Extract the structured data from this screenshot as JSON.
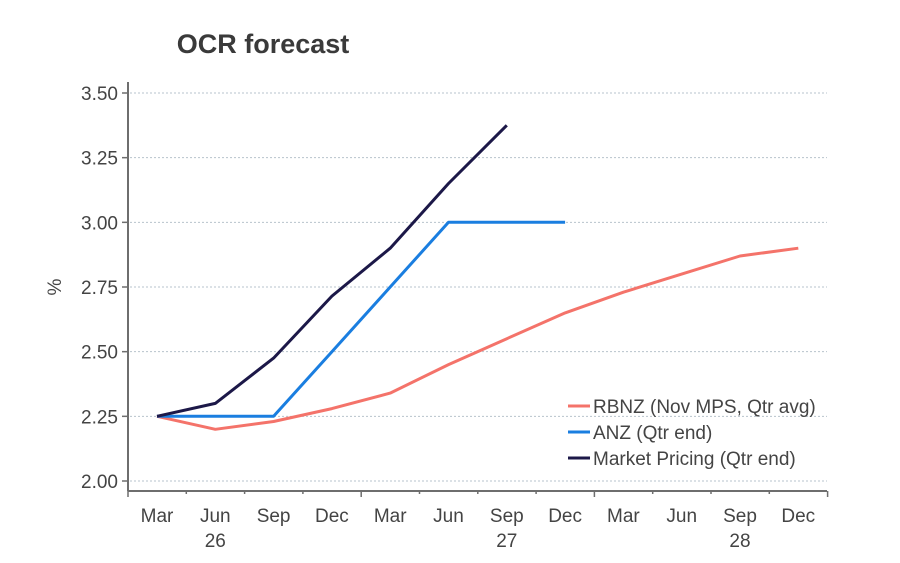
{
  "chart_data": {
    "type": "line",
    "title": "OCR forecast",
    "xlabel": "",
    "ylabel": "%",
    "ylim": [
      2.0,
      3.5
    ],
    "yticks": [
      "2.00",
      "2.25",
      "2.50",
      "2.75",
      "3.00",
      "3.25",
      "3.50"
    ],
    "ytick_values": [
      2.0,
      2.25,
      2.5,
      2.75,
      3.0,
      3.25,
      3.5
    ],
    "grid": true,
    "categories": [
      "Mar",
      "Jun",
      "Sep",
      "Dec",
      "Mar",
      "Jun",
      "Sep",
      "Dec",
      "Mar",
      "Jun",
      "Sep",
      "Dec"
    ],
    "year_labels": [
      {
        "label": "26",
        "under_index": 1
      },
      {
        "label": "27",
        "under_index": 6
      },
      {
        "label": "28",
        "under_index": 10
      }
    ],
    "legend_position": "bottom-right",
    "series": [
      {
        "name": "RBNZ (Nov MPS, Qtr avg)",
        "color": "#f4736a",
        "values": [
          2.25,
          2.2,
          2.23,
          2.28,
          2.34,
          2.45,
          2.55,
          2.65,
          2.73,
          2.8,
          2.87,
          2.9
        ]
      },
      {
        "name": "ANZ (Qtr end)",
        "color": "#1a7ee0",
        "values": [
          2.25,
          2.25,
          2.25,
          2.5,
          2.75,
          3.0,
          3.0,
          3.0,
          null,
          null,
          null,
          null
        ]
      },
      {
        "name": "Market Pricing (Qtr end)",
        "color": "#1c1848",
        "values": [
          2.25,
          2.3,
          2.475,
          2.715,
          2.9,
          3.15,
          3.375,
          null,
          null,
          null,
          null,
          null
        ]
      }
    ]
  }
}
